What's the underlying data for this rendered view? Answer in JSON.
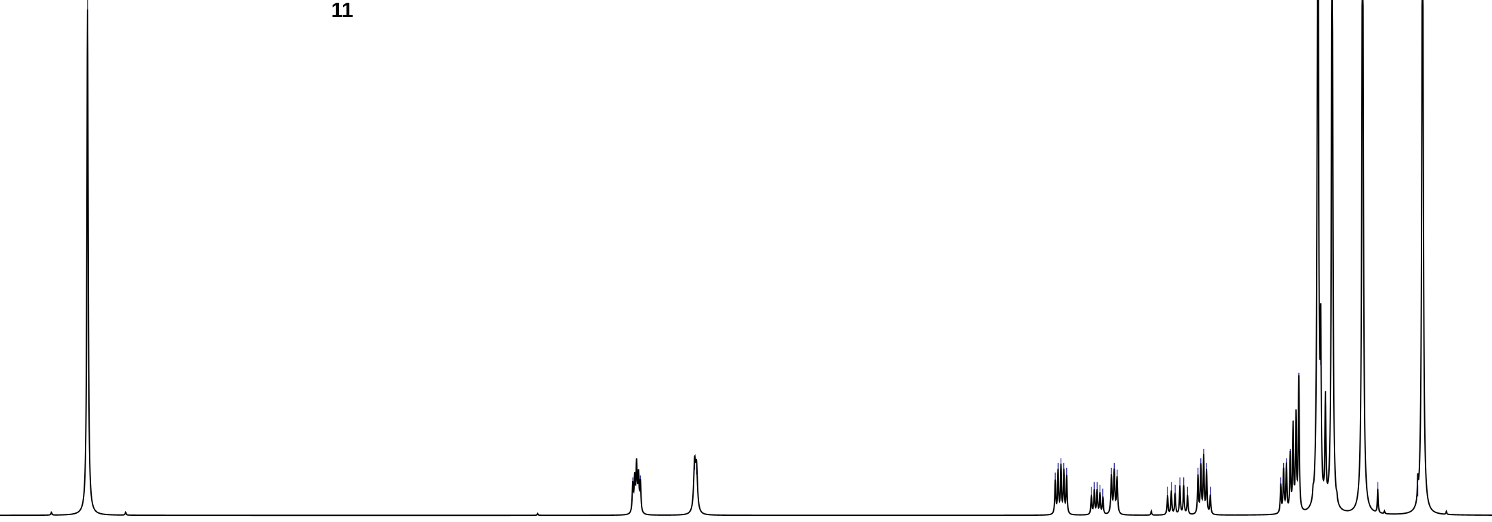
{
  "label": "11"
}
